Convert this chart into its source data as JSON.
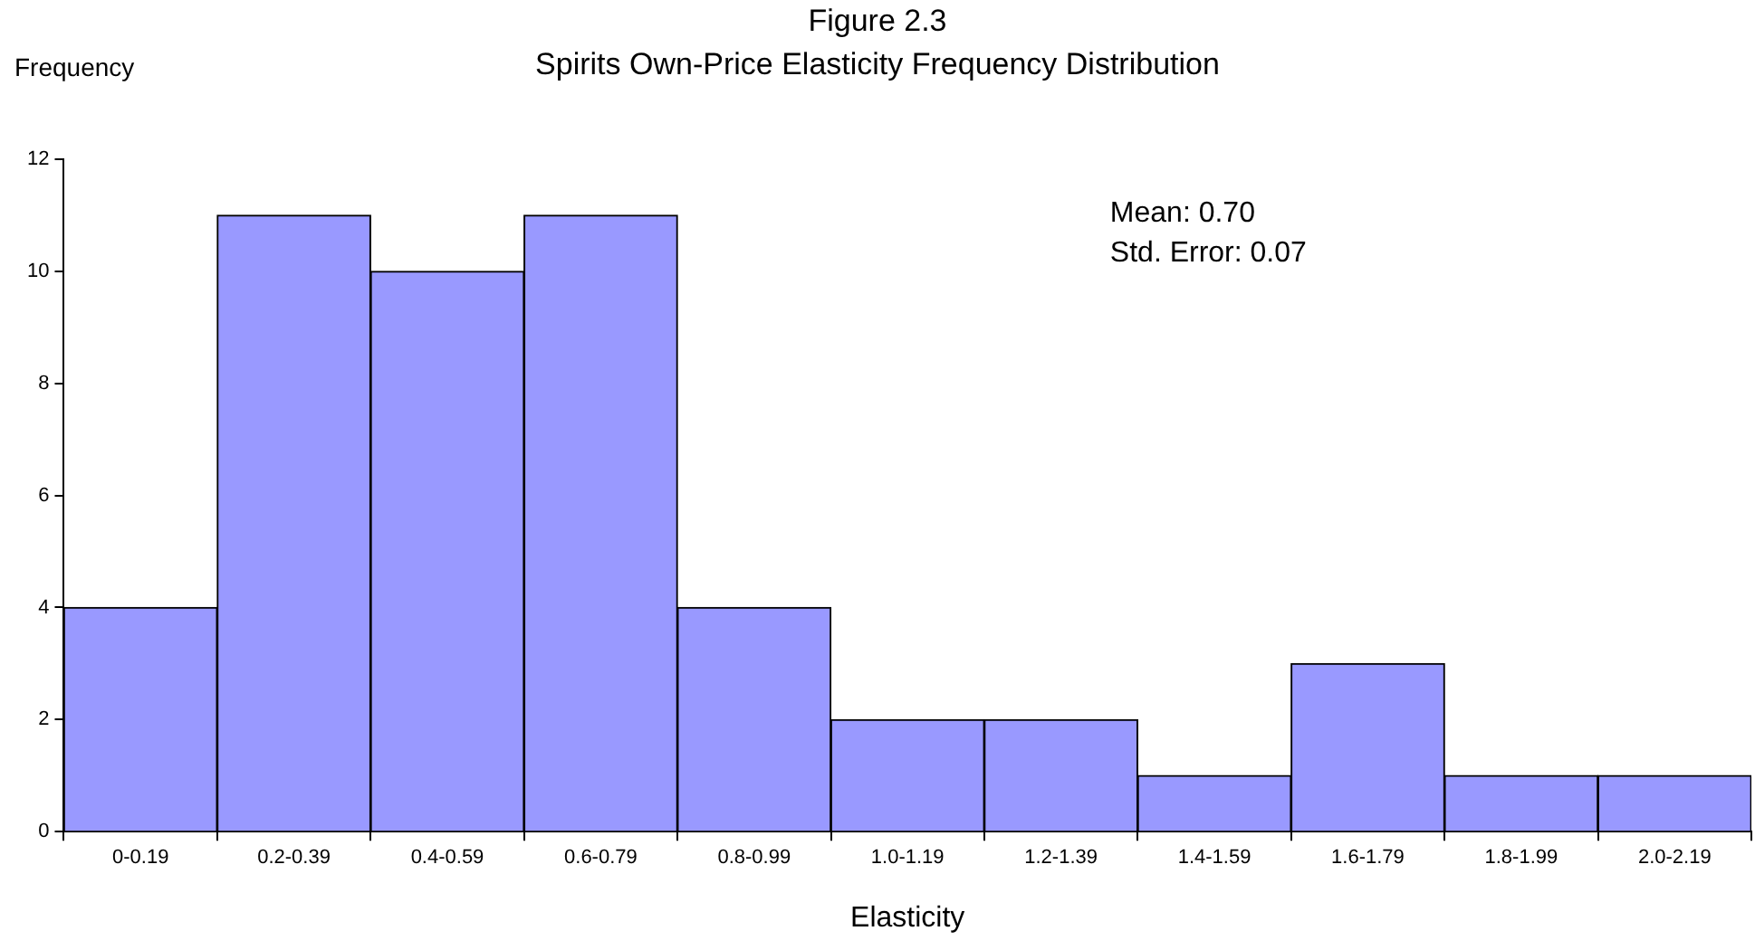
{
  "chart_data": {
    "type": "bar",
    "title": "Figure 2.3",
    "subtitle": "Spirits Own-Price Elasticity Frequency Distribution",
    "ylabel": "Frequency",
    "xlabel": "Elasticity",
    "categories": [
      "0-0.19",
      "0.2-0.39",
      "0.4-0.59",
      "0.6-0.79",
      "0.8-0.99",
      "1.0-1.19",
      "1.2-1.39",
      "1.4-1.59",
      "1.6-1.79",
      "1.8-1.99",
      "2.0-2.19"
    ],
    "values": [
      4,
      11,
      10,
      11,
      4,
      2,
      2,
      1,
      3,
      1,
      1
    ],
    "color": "#9999ff",
    "ylim": [
      0,
      12
    ],
    "yticks": [
      0,
      2,
      4,
      6,
      8,
      10,
      12
    ],
    "grid": false,
    "legend": false,
    "annotations": [
      "Mean: 0.70",
      "Std. Error: 0.07"
    ]
  }
}
